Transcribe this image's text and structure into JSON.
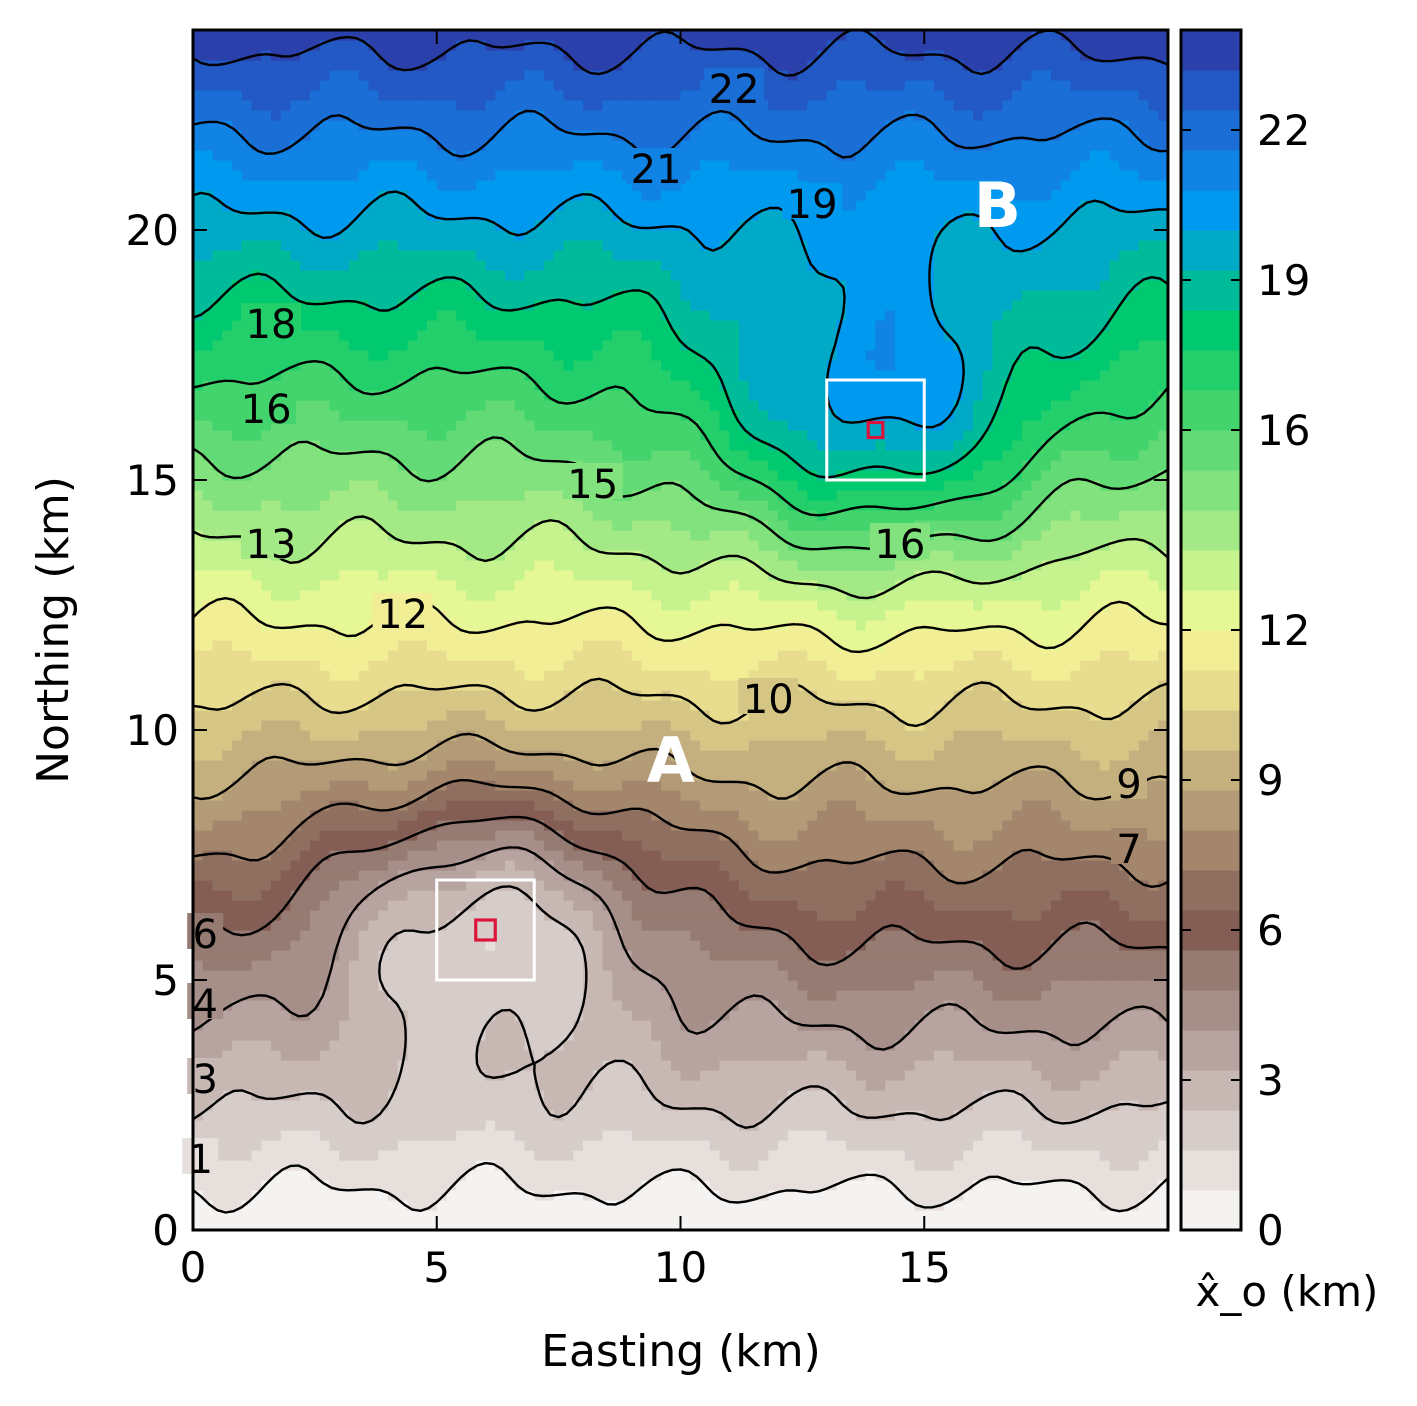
{
  "chart_data": {
    "type": "contour",
    "xlabel": "Easting (km)",
    "ylabel": "Northing (km)",
    "xlim": [
      0,
      20
    ],
    "ylim": [
      0,
      24
    ],
    "x_ticks": [
      0,
      5,
      10,
      15
    ],
    "y_ticks": [
      0,
      5,
      10,
      15,
      20
    ],
    "colorbar": {
      "label": "x̂_o (km)",
      "range": [
        0,
        24
      ],
      "ticks": [
        0,
        3,
        6,
        9,
        12,
        16,
        19,
        22
      ],
      "levels": [
        {
          "from": 0,
          "to": 0.8,
          "color": "#f5f3f1"
        },
        {
          "from": 0.8,
          "to": 1.6,
          "color": "#e6dfdc"
        },
        {
          "from": 1.6,
          "to": 2.4,
          "color": "#d6ccc9"
        },
        {
          "from": 2.4,
          "to": 3.2,
          "color": "#c7b8b4"
        },
        {
          "from": 3.2,
          "to": 4.0,
          "color": "#b7a39f"
        },
        {
          "from": 4.0,
          "to": 4.8,
          "color": "#a68f89"
        },
        {
          "from": 4.8,
          "to": 5.6,
          "color": "#967b73"
        },
        {
          "from": 5.6,
          "to": 6.4,
          "color": "#845e55"
        },
        {
          "from": 6.4,
          "to": 7.2,
          "color": "#8f6f5f"
        },
        {
          "from": 7.2,
          "to": 8.0,
          "color": "#a3866c"
        },
        {
          "from": 8.0,
          "to": 8.8,
          "color": "#b39b77"
        },
        {
          "from": 8.8,
          "to": 9.6,
          "color": "#c4b07e"
        },
        {
          "from": 9.6,
          "to": 10.4,
          "color": "#d6c686"
        },
        {
          "from": 10.4,
          "to": 11.2,
          "color": "#e8dc8f"
        },
        {
          "from": 11.2,
          "to": 12.0,
          "color": "#f2ee96"
        },
        {
          "from": 12.0,
          "to": 12.8,
          "color": "#e6f896"
        },
        {
          "from": 12.8,
          "to": 13.6,
          "color": "#c6f38e"
        },
        {
          "from": 13.6,
          "to": 14.4,
          "color": "#a3ea86"
        },
        {
          "from": 14.4,
          "to": 15.2,
          "color": "#82e27e"
        },
        {
          "from": 15.2,
          "to": 16.0,
          "color": "#62da76"
        },
        {
          "from": 16.0,
          "to": 16.8,
          "color": "#44d46e"
        },
        {
          "from": 16.8,
          "to": 17.6,
          "color": "#22cf6a"
        },
        {
          "from": 17.6,
          "to": 18.4,
          "color": "#00c96f"
        },
        {
          "from": 18.4,
          "to": 19.2,
          "color": "#00bb9a"
        },
        {
          "from": 19.2,
          "to": 20.0,
          "color": "#00a9c6"
        },
        {
          "from": 20.0,
          "to": 20.8,
          "color": "#0099f0"
        },
        {
          "from": 20.8,
          "to": 21.6,
          "color": "#1083e4"
        },
        {
          "from": 21.6,
          "to": 22.4,
          "color": "#1a6ed6"
        },
        {
          "from": 22.4,
          "to": 23.2,
          "color": "#2259c4"
        },
        {
          "from": 23.2,
          "to": 24.0,
          "color": "#2b40ab"
        }
      ]
    },
    "contour_labels": [
      {
        "text": "22",
        "x": 11.1,
        "y": 22.8
      },
      {
        "text": "21",
        "x": 9.5,
        "y": 21.2
      },
      {
        "text": "19",
        "x": 12.7,
        "y": 20.5
      },
      {
        "text": "18",
        "x": 1.6,
        "y": 18.1
      },
      {
        "text": "16",
        "x": 1.5,
        "y": 16.4
      },
      {
        "text": "15",
        "x": 8.2,
        "y": 14.9
      },
      {
        "text": "16",
        "x": 14.5,
        "y": 13.7
      },
      {
        "text": "13",
        "x": 1.6,
        "y": 13.7
      },
      {
        "text": "12",
        "x": 4.3,
        "y": 12.3
      },
      {
        "text": "10",
        "x": 11.8,
        "y": 10.6
      },
      {
        "text": "9",
        "x": 19.2,
        "y": 8.9
      },
      {
        "text": "7",
        "x": 19.2,
        "y": 7.6
      },
      {
        "text": "6",
        "x": 0.25,
        "y": 5.9
      },
      {
        "text": "4",
        "x": 0.25,
        "y": 4.5
      },
      {
        "text": "3",
        "x": 0.25,
        "y": 3.0
      },
      {
        "text": "1",
        "x": 0.15,
        "y": 1.4
      }
    ],
    "regions": [
      {
        "label": "A",
        "x": 9.8,
        "y": 9.4
      },
      {
        "label": "B",
        "x": 16.5,
        "y": 20.5
      }
    ],
    "boxes": [
      {
        "kind": "white",
        "x0": 5,
        "x1": 7,
        "y0": 5,
        "y1": 7
      },
      {
        "kind": "red",
        "x0": 5.8,
        "x1": 6.2,
        "y0": 5.8,
        "y1": 6.2
      },
      {
        "kind": "white",
        "x0": 13,
        "x1": 15,
        "y0": 15,
        "y1": 17
      },
      {
        "kind": "red",
        "x0": 13.85,
        "x1": 14.15,
        "y0": 15.85,
        "y1": 16.15
      }
    ]
  }
}
